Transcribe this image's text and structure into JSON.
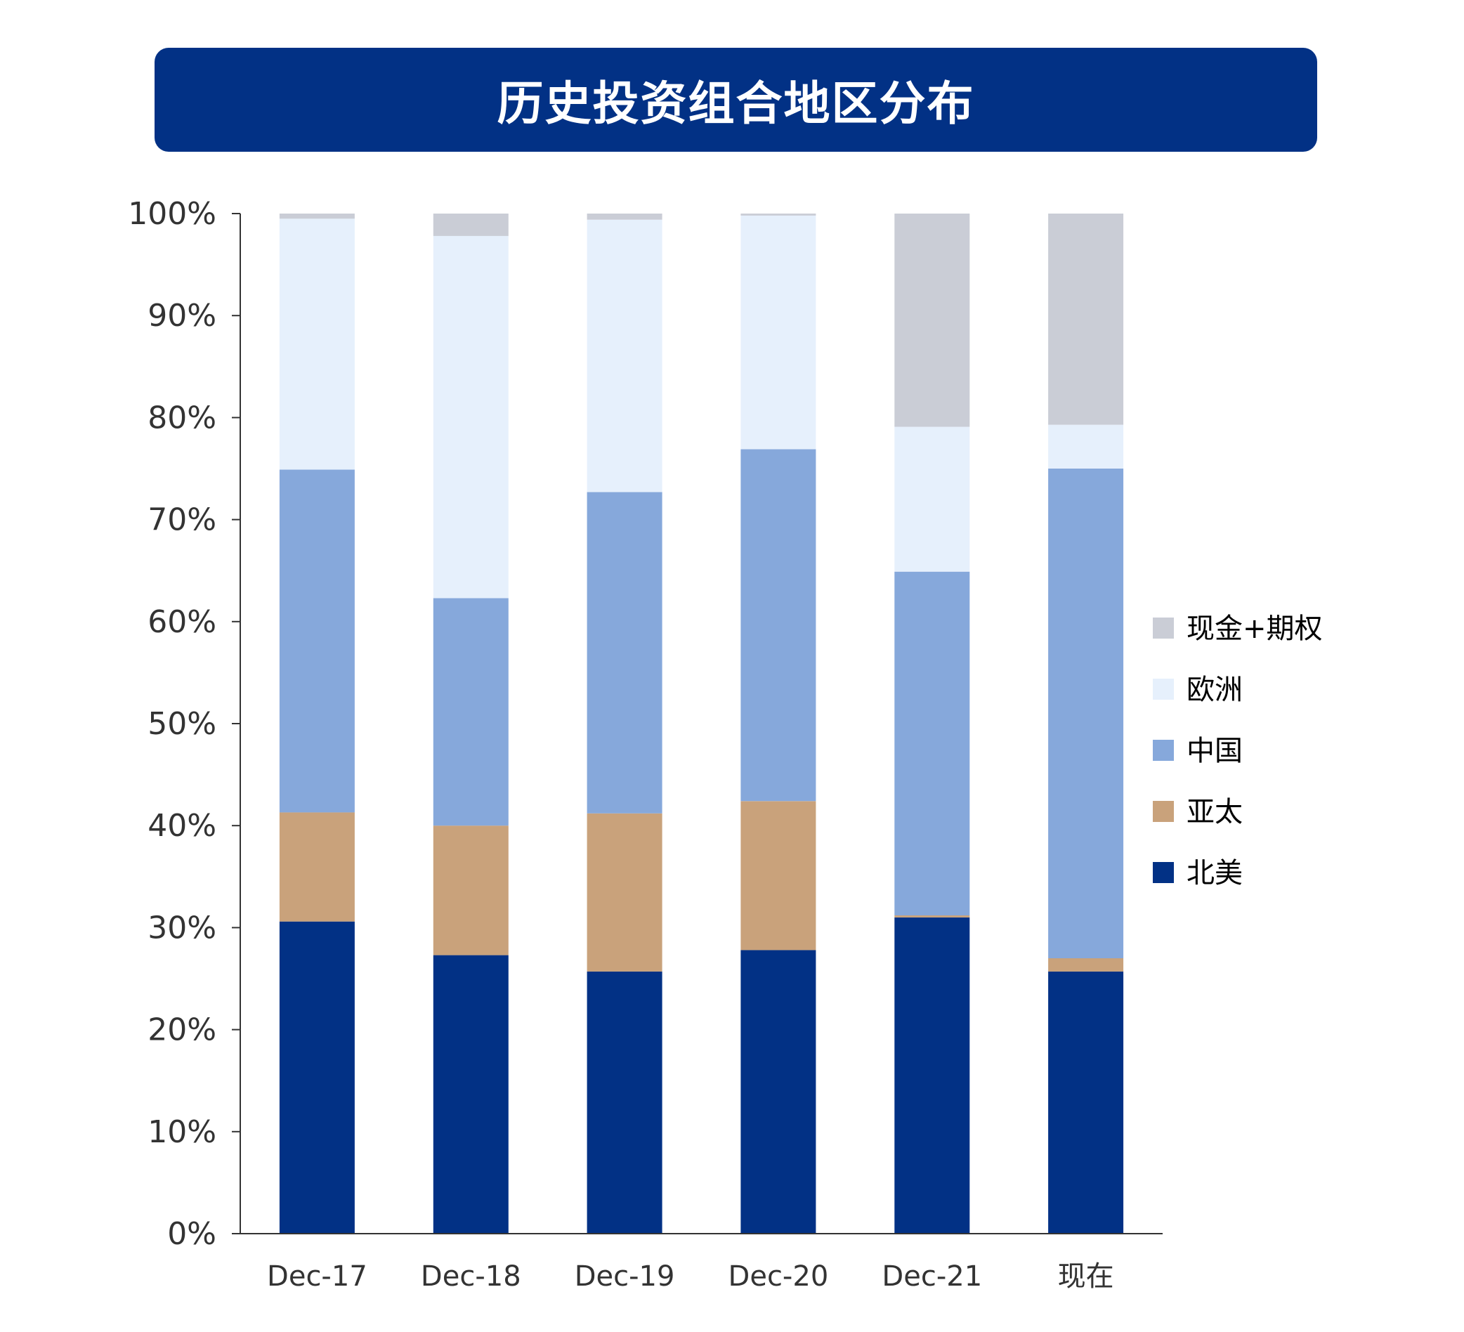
{
  "title": "历史投资组合地区分布",
  "chart_data": {
    "type": "bar",
    "stacked": true,
    "categories": [
      "Dec-17",
      "Dec-18",
      "Dec-19",
      "Dec-20",
      "Dec-21",
      "现在"
    ],
    "ylim": [
      0,
      100
    ],
    "y_ticks": [
      "0%",
      "10%",
      "20%",
      "30%",
      "40%",
      "50%",
      "60%",
      "70%",
      "80%",
      "90%",
      "100%"
    ],
    "grid": false,
    "legend_position": "right",
    "series": [
      {
        "name": "北美",
        "color": "#023185",
        "values": [
          30.6,
          27.3,
          25.7,
          27.8,
          31.0,
          25.7
        ]
      },
      {
        "name": "亚太",
        "color": "#C9A27B",
        "values": [
          10.7,
          12.7,
          15.5,
          14.6,
          0.2,
          1.3
        ]
      },
      {
        "name": "中国",
        "color": "#86A8DB",
        "values": [
          33.6,
          22.3,
          31.5,
          34.5,
          33.7,
          48.0
        ]
      },
      {
        "name": "欧洲",
        "color": "#E6F0FC",
        "values": [
          24.6,
          35.5,
          26.7,
          22.9,
          14.2,
          4.3
        ]
      },
      {
        "name": "现金+期权",
        "color": "#CACDD6",
        "values": [
          0.5,
          2.2,
          0.6,
          0.2,
          20.9,
          20.7
        ]
      }
    ],
    "legend_order": [
      "现金+期权",
      "欧洲",
      "中国",
      "亚太",
      "北美"
    ]
  }
}
